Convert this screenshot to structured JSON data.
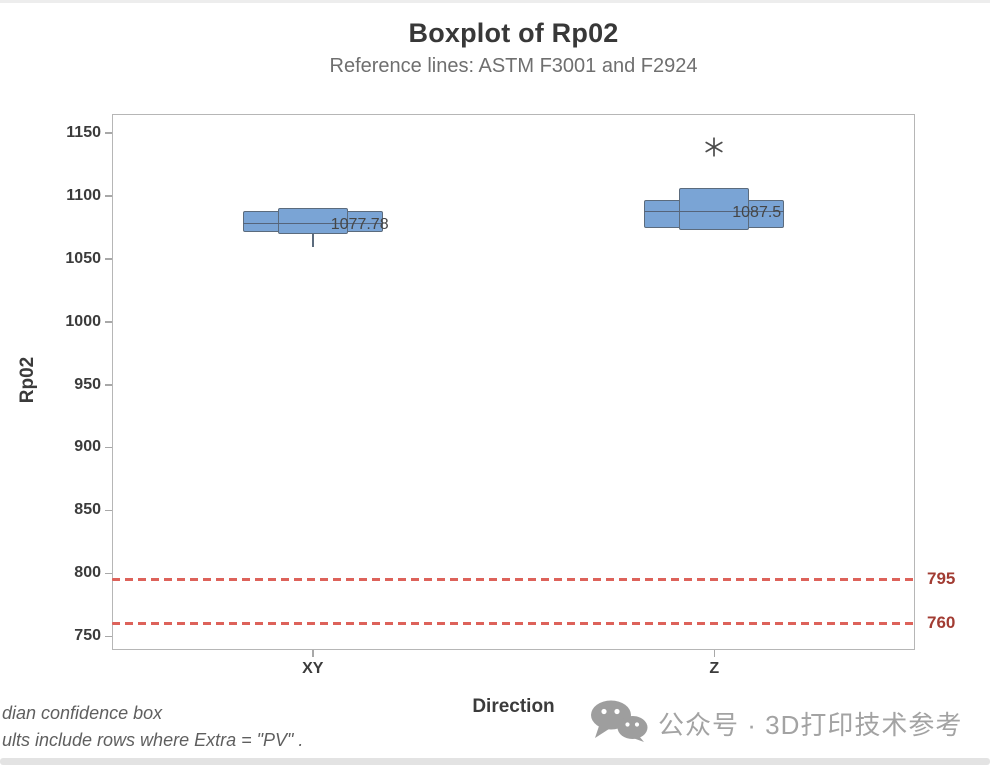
{
  "page": {
    "watermark": {
      "icon": "wechat-icon",
      "text": "公众号 · 3D打印技术参考"
    },
    "footnotes": [
      "dian confidence box",
      "ults include rows where  Extra =  \"PV\" ."
    ]
  },
  "chart_data": {
    "type": "boxplot",
    "title": "Boxplot of Rp02",
    "subtitle": "Reference lines: ASTM F3001 and F2924",
    "xlabel": "Direction",
    "ylabel": "Rp02",
    "categories": [
      "XY",
      "Z"
    ],
    "yticks": [
      1150,
      1100,
      1050,
      1000,
      950,
      900,
      850,
      800,
      750
    ],
    "ylim": [
      739,
      1165
    ],
    "grid": true,
    "legend": "none",
    "series": [
      {
        "category": "XY",
        "median": 1077.78,
        "median_label": "1077.78",
        "q1": 1071,
        "q3": 1088,
        "ci_low": 1070,
        "ci_high": 1090,
        "whisker_low": 1059,
        "outliers": []
      },
      {
        "category": "Z",
        "median": 1087.5,
        "median_label": "1087.5",
        "q1": 1074,
        "q3": 1097,
        "ci_low": 1073,
        "ci_high": 1106,
        "whisker_low": null,
        "outliers": [
          1139
        ]
      }
    ],
    "reference_lines": [
      {
        "value": 795,
        "label": "795"
      },
      {
        "value": 760,
        "label": "760"
      }
    ],
    "colors": {
      "box_fill": "#7aa4d5",
      "box_stroke": "#5b6b7d",
      "median_line": "#55647a",
      "ref_line": "#dd625a",
      "ref_label": "#a23c33",
      "outlier": "#4c4c4c",
      "grid_h": "#f0f0f0",
      "grid_v": "#e7e7e7",
      "frame": "#b6b6b6",
      "text_dark": "#3b3b3b",
      "text_gray": "#6f6f6f",
      "watermark": "#a3a3a3"
    }
  }
}
